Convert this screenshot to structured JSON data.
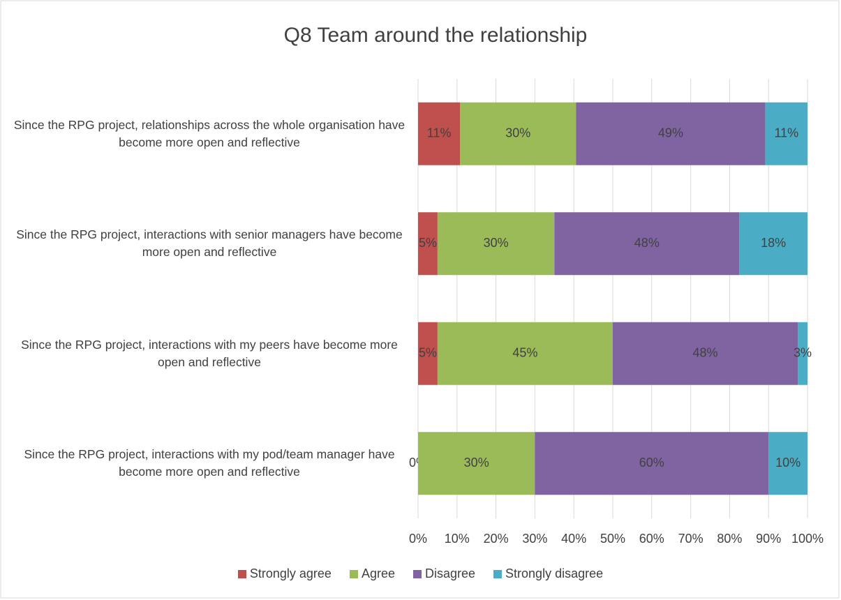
{
  "chart_data": {
    "type": "stacked-bar-horizontal",
    "title": "Q8 Team around the relationship",
    "categories": [
      "Since the RPG project, relationships across the whole organisation have become more open and reflective",
      "Since the RPG project, interactions with senior managers have become more open and reflective",
      "Since the RPG project, interactions with my peers have become more open and reflective",
      "Since the RPG project, interactions with my pod/team manager have become more open and reflective"
    ],
    "series": [
      {
        "name": "Strongly agree",
        "color": "#c0504d",
        "values": [
          10.81,
          5,
          5,
          0
        ],
        "value_labels": [
          "11%",
          "5%",
          "5%",
          "0%"
        ]
      },
      {
        "name": "Agree",
        "color": "#9bbb59",
        "values": [
          29.73,
          30,
          45,
          30
        ],
        "value_labels": [
          "30%",
          "30%",
          "45%",
          "30%"
        ]
      },
      {
        "name": "Disagree",
        "color": "#8064a2",
        "values": [
          48.65,
          47.5,
          47.5,
          60
        ],
        "value_labels": [
          "49%",
          "48%",
          "48%",
          "60%"
        ]
      },
      {
        "name": "Strongly disagree",
        "color": "#4bacc6",
        "values": [
          10.81,
          17.5,
          2.5,
          10
        ],
        "value_labels": [
          "11%",
          "18%",
          "3%",
          "10%"
        ]
      }
    ],
    "xlim": [
      0,
      100
    ],
    "xticks": [
      {
        "value": 0,
        "label": "0%"
      },
      {
        "value": 10,
        "label": "10%"
      },
      {
        "value": 20,
        "label": "20%"
      },
      {
        "value": 30,
        "label": "30%"
      },
      {
        "value": 40,
        "label": "40%"
      },
      {
        "value": 50,
        "label": "50%"
      },
      {
        "value": 60,
        "label": "60%"
      },
      {
        "value": 70,
        "label": "70%"
      },
      {
        "value": 80,
        "label": "80%"
      },
      {
        "value": 90,
        "label": "90%"
      },
      {
        "value": 100,
        "label": "100%"
      }
    ],
    "grid": true,
    "legend": "bottom"
  }
}
